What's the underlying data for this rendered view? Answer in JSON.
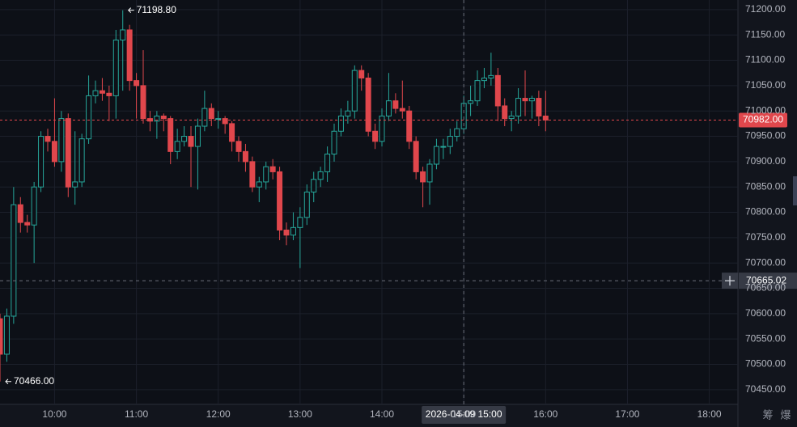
{
  "chart_data": {
    "type": "candlestick",
    "x": [
      "09:20",
      "09:25",
      "09:30",
      "09:35",
      "09:40",
      "09:45",
      "09:50",
      "09:55",
      "10:00",
      "10:05",
      "10:10",
      "10:15",
      "10:20",
      "10:25",
      "10:30",
      "10:35",
      "10:40",
      "10:45",
      "10:50",
      "10:55",
      "11:00",
      "11:05",
      "11:10",
      "11:15",
      "11:20",
      "11:25",
      "11:30",
      "11:35",
      "11:40",
      "11:45",
      "11:50",
      "11:55",
      "12:00",
      "12:05",
      "12:10",
      "12:15",
      "12:20",
      "12:25",
      "12:30",
      "12:35",
      "12:40",
      "12:45",
      "12:50",
      "12:55",
      "13:00",
      "13:05",
      "13:10",
      "13:15",
      "13:20",
      "13:25",
      "13:30",
      "13:35",
      "13:40",
      "13:45",
      "13:50",
      "13:55",
      "14:00",
      "14:05",
      "14:10",
      "14:15",
      "14:20",
      "14:25",
      "14:30",
      "14:35",
      "14:40",
      "14:45",
      "14:50",
      "14:55",
      "15:00",
      "15:05",
      "15:10",
      "15:15",
      "15:20",
      "15:25",
      "15:30",
      "15:35",
      "15:40",
      "15:45",
      "15:50",
      "15:55",
      "16:00"
    ],
    "open": [
      70590,
      70520,
      70595,
      70815,
      70780,
      70775,
      70850,
      70950,
      70940,
      70900,
      70985,
      70850,
      70860,
      70945,
      71030,
      71040,
      71035,
      71030,
      71140,
      71160,
      71060,
      71050,
      70985,
      70980,
      70990,
      70985,
      70920,
      70940,
      70950,
      70930,
      70970,
      71005,
      70985,
      70985,
      70975,
      70940,
      70920,
      70900,
      70850,
      70860,
      70890,
      70880,
      70765,
      70755,
      70770,
      70790,
      70840,
      70865,
      70880,
      70915,
      70960,
      70990,
      71000,
      71080,
      71065,
      70960,
      70940,
      70990,
      71020,
      71005,
      71000,
      70940,
      70880,
      70860,
      70895,
      70930,
      70930,
      70950,
      70965,
      71015,
      71020,
      71060,
      71065,
      71070,
      71010,
      70985,
      70990,
      71025,
      71020,
      71025,
      70990
    ],
    "high": [
      70600,
      70610,
      70850,
      70830,
      70795,
      70860,
      70960,
      70965,
      71025,
      71000,
      70995,
      70960,
      70955,
      71070,
      71060,
      71065,
      71050,
      71160,
      71198.8,
      71170,
      71075,
      71120,
      71000,
      71000,
      70995,
      70990,
      70965,
      70970,
      70970,
      70985,
      71040,
      71015,
      71000,
      70990,
      70980,
      70950,
      70935,
      70910,
      70870,
      70900,
      70905,
      70890,
      70780,
      70800,
      70810,
      70855,
      70880,
      70890,
      70930,
      70975,
      71005,
      71020,
      71090,
      71090,
      71075,
      70975,
      71005,
      71075,
      71035,
      71060,
      71010,
      70950,
      70890,
      70905,
      70945,
      70945,
      70965,
      70980,
      71030,
      71050,
      71080,
      71085,
      71115,
      71085,
      71025,
      71000,
      71045,
      71080,
      71030,
      71040,
      71040
    ],
    "low": [
      70466,
      70505,
      70580,
      70760,
      70760,
      70700,
      70840,
      70920,
      70890,
      70880,
      70830,
      70815,
      70850,
      70935,
      71015,
      71020,
      70980,
      70985,
      71040,
      71040,
      70985,
      70975,
      70960,
      70945,
      70960,
      70895,
      70905,
      70930,
      70850,
      70845,
      70960,
      70970,
      70965,
      70955,
      70920,
      70900,
      70880,
      70840,
      70820,
      70845,
      70865,
      70745,
      70735,
      70745,
      70690,
      70775,
      70820,
      70850,
      70860,
      70900,
      70950,
      70975,
      70985,
      71040,
      70950,
      70925,
      70930,
      70980,
      70995,
      70985,
      70925,
      70865,
      70810,
      70815,
      70885,
      70905,
      70915,
      70940,
      70955,
      70990,
      71010,
      71045,
      71050,
      70980,
      70970,
      70960,
      70975,
      70990,
      70985,
      70970,
      70960
    ],
    "close": [
      70520,
      70595,
      70815,
      70780,
      70775,
      70850,
      70950,
      70940,
      70900,
      70985,
      70850,
      70860,
      70945,
      71030,
      71040,
      71035,
      71030,
      71140,
      71160,
      71060,
      71050,
      70985,
      70980,
      70990,
      70985,
      70920,
      70940,
      70950,
      70930,
      70970,
      71005,
      70985,
      70985,
      70975,
      70940,
      70920,
      70900,
      70850,
      70860,
      70890,
      70880,
      70765,
      70755,
      70770,
      70790,
      70840,
      70865,
      70880,
      70915,
      70960,
      70990,
      71000,
      71080,
      71065,
      70960,
      70940,
      70990,
      71020,
      71005,
      71000,
      70940,
      70880,
      70860,
      70895,
      70930,
      70930,
      70950,
      70965,
      71015,
      71020,
      71060,
      71065,
      71070,
      71010,
      70985,
      70990,
      71025,
      71020,
      71025,
      70990,
      70982
    ],
    "up_color": "#26a69a",
    "down_color": "#e0474c",
    "xlim": [
      "09:20",
      "18:21"
    ],
    "xticks": [
      "10:00",
      "11:00",
      "12:00",
      "13:00",
      "14:00",
      "15:00",
      "16:00",
      "17:00",
      "18:00"
    ],
    "ylim": [
      70421,
      71219
    ],
    "yticks": [
      {
        "value": 70450,
        "label": "70450.00"
      },
      {
        "value": 70500,
        "label": "70500.00"
      },
      {
        "value": 70550,
        "label": "70550.00"
      },
      {
        "value": 70600,
        "label": "70600.00"
      },
      {
        "value": 70650,
        "label": "70650.00"
      },
      {
        "value": 70700,
        "label": "70700.00"
      },
      {
        "value": 70750,
        "label": "70750.00"
      },
      {
        "value": 70800,
        "label": "70800.00"
      },
      {
        "value": 70850,
        "label": "70850.00"
      },
      {
        "value": 70900,
        "label": "70900.00"
      },
      {
        "value": 70950,
        "label": "70950.00"
      },
      {
        "value": 71000,
        "label": "71000.00"
      },
      {
        "value": 71050,
        "label": "71050.00"
      },
      {
        "value": 71100,
        "label": "71100.00"
      },
      {
        "value": 71150,
        "label": "71150.00"
      },
      {
        "value": 71200,
        "label": "71200.00"
      }
    ],
    "grid": true,
    "last_price": {
      "value": 70982,
      "label": "70982.00"
    },
    "high_marker": {
      "value": 71198.8,
      "label": "71198.80",
      "time": "10:50"
    },
    "low_marker": {
      "value": 70466,
      "label": "70466.00",
      "time": "09:20"
    },
    "crosshair": {
      "price": 70665.02,
      "time": "2026-04-09 15:00"
    },
    "toolbar": [
      "筹",
      "爆"
    ]
  }
}
